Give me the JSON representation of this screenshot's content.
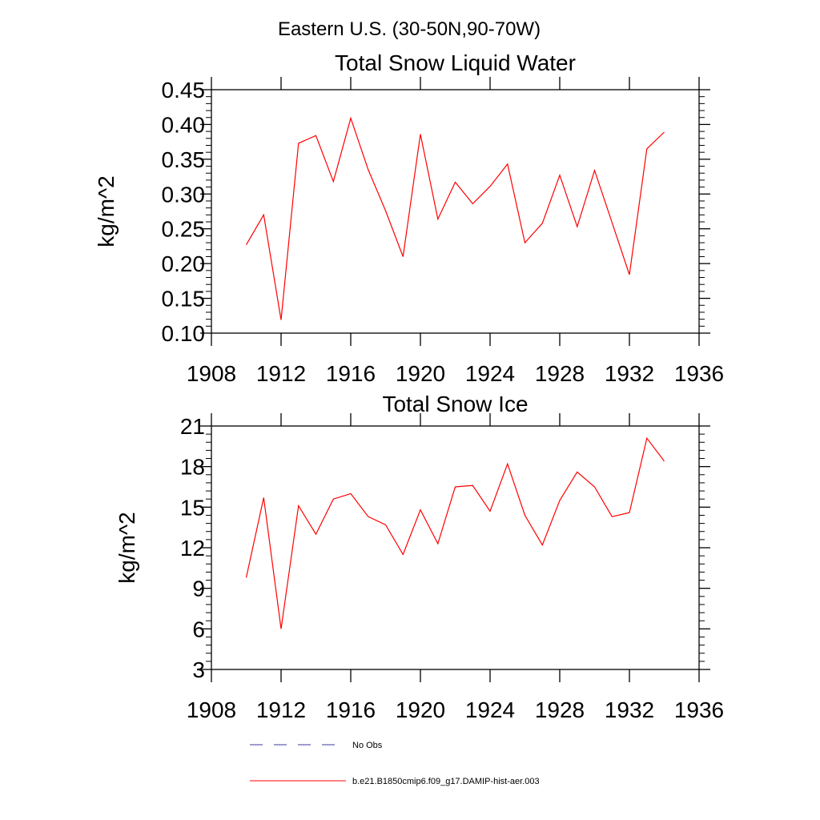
{
  "suptitle": "Eastern U.S. (30-50N,90-70W)",
  "colors": {
    "model": "#ff0000",
    "obs": "#3b3b9e",
    "axis": "#000000"
  },
  "legend": {
    "entries": [
      {
        "label": "No Obs",
        "style": "dashed",
        "color": "#3b3b9e"
      },
      {
        "label": "b.e21.B1850cmip6.f09_g17.DAMIP-hist-aer.003",
        "style": "solid",
        "color": "#ff0000"
      }
    ]
  },
  "chart_data": [
    {
      "type": "line",
      "title": "Total Snow Liquid Water",
      "xlabel": "",
      "ylabel": "kg/m^2",
      "xlim": [
        1908,
        1936
      ],
      "ylim": [
        0.1,
        0.45
      ],
      "x_ticks": [
        1908,
        1912,
        1916,
        1920,
        1924,
        1928,
        1932,
        1936
      ],
      "x_tick_labels": [
        "1908",
        "1912",
        "1916",
        "1920",
        "1924",
        "1928",
        "1932",
        "1936"
      ],
      "y_ticks": [
        0.1,
        0.15,
        0.2,
        0.25,
        0.3,
        0.35,
        0.4,
        0.45
      ],
      "y_tick_labels": [
        "0.10",
        "0.15",
        "0.20",
        "0.25",
        "0.30",
        "0.35",
        "0.40",
        "0.45"
      ],
      "grid": false,
      "series": [
        {
          "color": "#ff0000",
          "x": [
            1910,
            1911,
            1912,
            1913,
            1914,
            1915,
            1916,
            1917,
            1918,
            1919,
            1920,
            1921,
            1922,
            1923,
            1924,
            1925,
            1926,
            1927,
            1928,
            1929,
            1930,
            1931,
            1932,
            1933,
            1934
          ],
          "y": [
            0.227,
            0.27,
            0.119,
            0.373,
            0.384,
            0.318,
            0.409,
            0.335,
            0.276,
            0.21,
            0.386,
            0.264,
            0.317,
            0.286,
            0.311,
            0.343,
            0.23,
            0.258,
            0.327,
            0.253,
            0.334,
            0.259,
            0.184,
            0.365,
            0.389
          ]
        }
      ]
    },
    {
      "type": "line",
      "title": "Total Snow Ice",
      "xlabel": "",
      "ylabel": "kg/m^2",
      "xlim": [
        1908,
        1936
      ],
      "ylim": [
        3,
        21
      ],
      "x_ticks": [
        1908,
        1912,
        1916,
        1920,
        1924,
        1928,
        1932,
        1936
      ],
      "x_tick_labels": [
        "1908",
        "1912",
        "1916",
        "1920",
        "1924",
        "1928",
        "1932",
        "1936"
      ],
      "y_ticks": [
        3,
        6,
        9,
        12,
        15,
        18,
        21
      ],
      "y_tick_labels": [
        "3",
        "6",
        "9",
        "12",
        "15",
        "18",
        "21"
      ],
      "grid": false,
      "series": [
        {
          "color": "#ff0000",
          "x": [
            1910,
            1911,
            1912,
            1913,
            1914,
            1915,
            1916,
            1917,
            1918,
            1919,
            1920,
            1921,
            1922,
            1923,
            1924,
            1925,
            1926,
            1927,
            1928,
            1929,
            1930,
            1931,
            1932,
            1933,
            1934
          ],
          "y": [
            9.8,
            15.7,
            6.0,
            15.1,
            13.0,
            15.6,
            16.0,
            14.3,
            13.7,
            11.5,
            14.8,
            12.3,
            16.5,
            16.6,
            14.7,
            18.2,
            14.4,
            12.2,
            15.5,
            17.6,
            16.5,
            14.3,
            14.6,
            20.1,
            18.4
          ]
        }
      ]
    }
  ]
}
